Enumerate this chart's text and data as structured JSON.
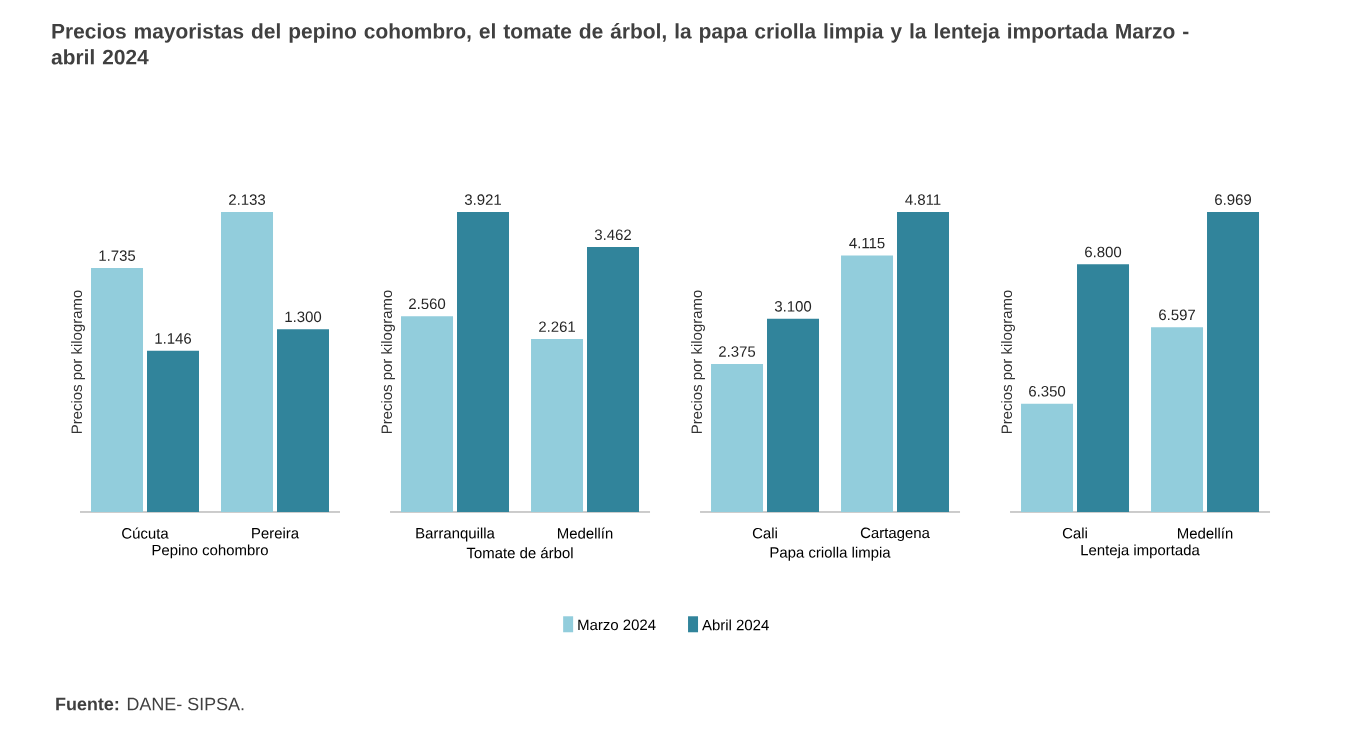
{
  "chart_data": [
    {
      "type": "bar",
      "title": "Precios mayoristas del pepino cohombro, el tomate de árbol, la papa criolla limpia y la lenteja importada Marzo - abril 2024",
      "annotations": [
        "**Fuente:** DANE- SIPSA."
      ],
      "categories": [
        "Cúcuta",
        "Pereira"
      ],
      "xlabel": "Pepino cohombro",
      "ylabel": "Precios por kilogramo",
      "ylim": [
        0,
        2.133
      ],
      "tick_labels": "x",
      "series": [
        {
          "color": "#92cddc",
          "values": [
            1.735,
            2.133
          ],
          "value_labels": [
            "1.735",
            "2.133"
          ]
        },
        {
          "color": "#31849b",
          "values": [
            1.146,
            1.3
          ],
          "value_labels": [
            "1.146",
            "1.300"
          ]
        }
      ]
    },
    {
      "type": "bar",
      "categories": [
        "Barranquilla",
        "Medellín"
      ],
      "xlabel": "Tomate de árbol",
      "ylabel": "Precios por kilogramo",
      "ylim": [
        0,
        3.921
      ],
      "tick_labels": "x",
      "legend": "bottom",
      "series": [
        {
          "name": "Marzo 2024",
          "color": "#92cddc",
          "values": [
            2.56,
            2.261
          ],
          "value_labels": [
            "2.560",
            "2.261"
          ]
        },
        {
          "name": "Abril 2024",
          "color": "#31849b",
          "values": [
            3.921,
            3.462
          ],
          "value_labels": [
            "3.921",
            "3.462"
          ]
        }
      ]
    },
    {
      "type": "bar",
      "categories": [
        "Cali",
        "Cartagena"
      ],
      "xlabel": "Papa criolla limpia",
      "ylabel": "Precios por kilogramo",
      "ylim": [
        0,
        4.811
      ],
      "tick_labels": "x",
      "series": [
        {
          "color": "#92cddc",
          "values": [
            2.375,
            4.115
          ],
          "value_labels": [
            "2.375",
            "4.115"
          ]
        },
        {
          "color": "#31849b",
          "values": [
            3.1,
            4.811
          ],
          "value_labels": [
            "3.100",
            "4.811"
          ]
        }
      ]
    },
    {
      "type": "bar",
      "categories": [
        "Cali",
        "Medellín"
      ],
      "xlabel": "Lenteja importada",
      "ylabel": "Precios por kilogramo",
      "ylim": [
        6,
        6.969
      ],
      "tick_labels": "x",
      "series": [
        {
          "color": "#92cddc",
          "values": [
            6.35,
            6.597
          ],
          "value_labels": [
            "6.350",
            "6.597"
          ]
        },
        {
          "color": "#31849b",
          "values": [
            6.8,
            6.969
          ],
          "value_labels": [
            "6.800",
            "6.969"
          ]
        }
      ]
    }
  ]
}
